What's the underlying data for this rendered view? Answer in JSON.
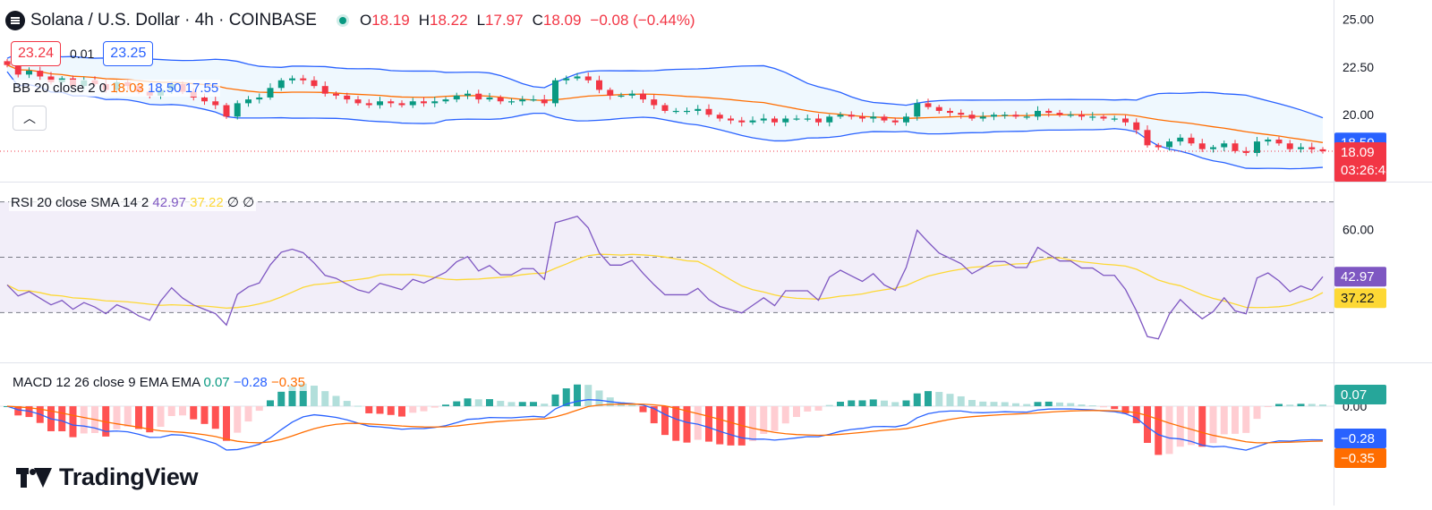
{
  "header": {
    "title": "Solana / U.S. Dollar · 4h · COINBASE",
    "ohlc": [
      {
        "k": "O",
        "v": "18.19"
      },
      {
        "k": "H",
        "v": "18.22"
      },
      {
        "k": "L",
        "v": "17.97"
      },
      {
        "k": "C",
        "v": "18.09"
      }
    ],
    "change": "−0.08 (−0.44%)",
    "status": "market-open-indicator"
  },
  "trade": {
    "sell": "23.24",
    "spread": "0.01",
    "buy": "23.25"
  },
  "indicators": {
    "bb": {
      "name": "BB 20 close 2 0",
      "basis": "18.03",
      "upper": "18.50",
      "lower": "17.55"
    },
    "rsi": {
      "name": "RSI 20 close SMA 14 2",
      "value": "42.97",
      "sma": "37.22",
      "x1": "∅",
      "x2": "∅"
    },
    "macd": {
      "name": "MACD 12 26 close 9 EMA EMA",
      "hist": "0.07",
      "macd": "−0.28",
      "signal": "−0.35"
    }
  },
  "axis_badges": {
    "bb_upper": "18.50",
    "price": "18.09",
    "countdown": "03:26:45",
    "rsi": "42.97",
    "rsi_sma": "37.22",
    "macd_hist": "0.07",
    "macd": "−0.28",
    "signal": "−0.35",
    "macd_zero_partial": "0.00"
  },
  "brand": "TradingView",
  "icons": {
    "symbol": "solana-logo",
    "collapse": "chevron-up-icon"
  },
  "colors": {
    "up": "#089981",
    "down": "#f23645",
    "bb_basis": "#ff6d00",
    "bb_band": "#2962ff",
    "rsi": "#7e57c2",
    "rsi_sma": "#fdd835",
    "macd": "#2962ff",
    "signal": "#ff6d00"
  },
  "chart_data": [
    {
      "type": "candlestick",
      "title": "Solana / U.S. Dollar · 4h · COINBASE",
      "y_ticks": [
        "25.00",
        "22.50",
        "20.00"
      ],
      "ylim": [
        16.5,
        26.0
      ],
      "close": [
        22.6,
        22.1,
        22.3,
        22.0,
        21.7,
        21.9,
        21.5,
        21.8,
        21.6,
        21.3,
        21.7,
        21.5,
        21.2,
        21.0,
        21.3,
        21.6,
        21.2,
        20.9,
        20.7,
        20.5,
        19.9,
        20.6,
        20.8,
        20.9,
        21.4,
        21.8,
        21.9,
        21.8,
        21.5,
        21.1,
        21.0,
        20.8,
        20.6,
        20.5,
        20.7,
        20.6,
        20.5,
        20.7,
        20.6,
        20.7,
        20.8,
        21.0,
        21.1,
        20.8,
        20.9,
        20.7,
        20.7,
        20.8,
        20.8,
        20.6,
        21.8,
        21.9,
        22.0,
        21.8,
        21.3,
        21.0,
        21.0,
        21.1,
        20.8,
        20.5,
        20.2,
        20.2,
        20.2,
        20.3,
        20.0,
        19.8,
        19.7,
        19.6,
        19.7,
        19.8,
        19.6,
        19.8,
        19.8,
        19.8,
        19.6,
        19.9,
        20.0,
        19.9,
        19.8,
        19.9,
        19.7,
        19.6,
        19.9,
        20.6,
        20.4,
        20.2,
        20.1,
        20.0,
        19.8,
        19.9,
        20.0,
        20.0,
        19.9,
        19.9,
        20.2,
        20.1,
        20.0,
        20.0,
        19.9,
        19.9,
        19.8,
        19.8,
        19.6,
        19.2,
        18.4,
        18.3,
        18.6,
        18.8,
        18.5,
        18.2,
        18.3,
        18.5,
        18.1,
        18.0,
        18.6,
        18.7,
        18.5,
        18.2,
        18.3,
        18.19,
        18.09
      ],
      "upper_band_end": 18.5,
      "basis_end": 18.03,
      "lower_band_end": 17.55
    },
    {
      "type": "line",
      "title": "RSI 20 close SMA 14 2",
      "y_ticks": [
        "60.00"
      ],
      "levels": [
        70,
        50,
        30
      ],
      "series": [
        {
          "name": "RSI",
          "last": 42.97
        },
        {
          "name": "SMA",
          "last": 37.22
        }
      ]
    },
    {
      "type": "bar",
      "title": "MACD 12 26 close 9 EMA EMA",
      "series": [
        {
          "name": "Histogram",
          "last": 0.07
        },
        {
          "name": "MACD",
          "last": -0.28
        },
        {
          "name": "Signal",
          "last": -0.35
        }
      ]
    }
  ]
}
